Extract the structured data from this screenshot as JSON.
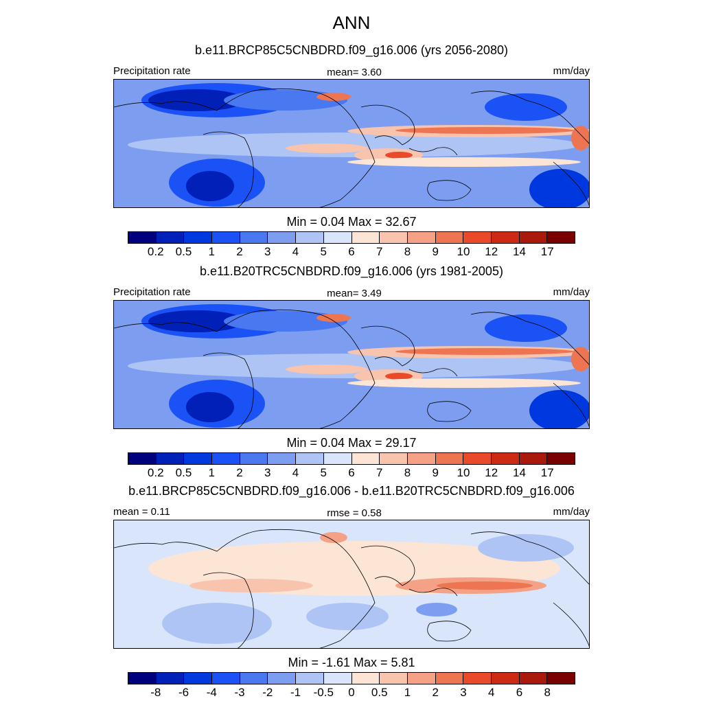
{
  "main_title": "ANN",
  "chart_data": [
    {
      "type": "heatmap",
      "title": "b.e11.BRCP85C5CNBDRD.f09_g16.006 (yrs 2056-2080)",
      "left_label": "Precipitation rate",
      "center_label": "mean=   3.60",
      "units": "mm/day",
      "min_max": "Min =   0.04 Max =  32.67",
      "min": 0.04,
      "max": 32.67,
      "mean": 3.6,
      "colorbar_ticks": [
        "0.2",
        "0.5",
        "1",
        "2",
        "3",
        "4",
        "5",
        "6",
        "7",
        "8",
        "9",
        "10",
        "12",
        "14",
        "17"
      ],
      "colorbar_levels": [
        0.2,
        0.5,
        1,
        2,
        3,
        4,
        5,
        6,
        7,
        8,
        9,
        10,
        12,
        14,
        17
      ]
    },
    {
      "type": "heatmap",
      "title": "b.e11.B20TRC5CNBDRD.f09_g16.006 (yrs 1981-2005)",
      "left_label": "Precipitation rate",
      "center_label": "mean=   3.49",
      "units": "mm/day",
      "min_max": "Min =   0.04 Max =  29.17",
      "min": 0.04,
      "max": 29.17,
      "mean": 3.49,
      "colorbar_ticks": [
        "0.2",
        "0.5",
        "1",
        "2",
        "3",
        "4",
        "5",
        "6",
        "7",
        "8",
        "9",
        "10",
        "12",
        "14",
        "17"
      ],
      "colorbar_levels": [
        0.2,
        0.5,
        1,
        2,
        3,
        4,
        5,
        6,
        7,
        8,
        9,
        10,
        12,
        14,
        17
      ]
    },
    {
      "type": "heatmap",
      "title": "b.e11.BRCP85C5CNBDRD.f09_g16.006 - b.e11.B20TRC5CNBDRD.f09_g16.006",
      "left_label": "mean =   0.11",
      "center_label": "rmse =   0.58",
      "units": "mm/day",
      "min_max": "Min =  -1.61 Max =   5.81",
      "min": -1.61,
      "max": 5.81,
      "mean": 0.11,
      "rmse": 0.58,
      "colorbar_ticks": [
        "-8",
        "-6",
        "-4",
        "-3",
        "-2",
        "-1",
        "-0.5",
        "0",
        "0.5",
        "1",
        "2",
        "3",
        "4",
        "6",
        "8"
      ],
      "colorbar_levels": [
        -8,
        -6,
        -4,
        -3,
        -2,
        -1,
        -0.5,
        0,
        0.5,
        1,
        2,
        3,
        4,
        6,
        8
      ]
    }
  ],
  "colors": {
    "palette": [
      "#00007f",
      "#0020b8",
      "#0038e0",
      "#1a52f5",
      "#4a78f0",
      "#7d9ef0",
      "#aec4f5",
      "#d8e5fa",
      "#fde5d5",
      "#f8c4ae",
      "#f4a185",
      "#ee7552",
      "#e84a2a",
      "#cc2a14",
      "#a91a0c",
      "#7a0000"
    ],
    "land_outline": "#000000"
  }
}
